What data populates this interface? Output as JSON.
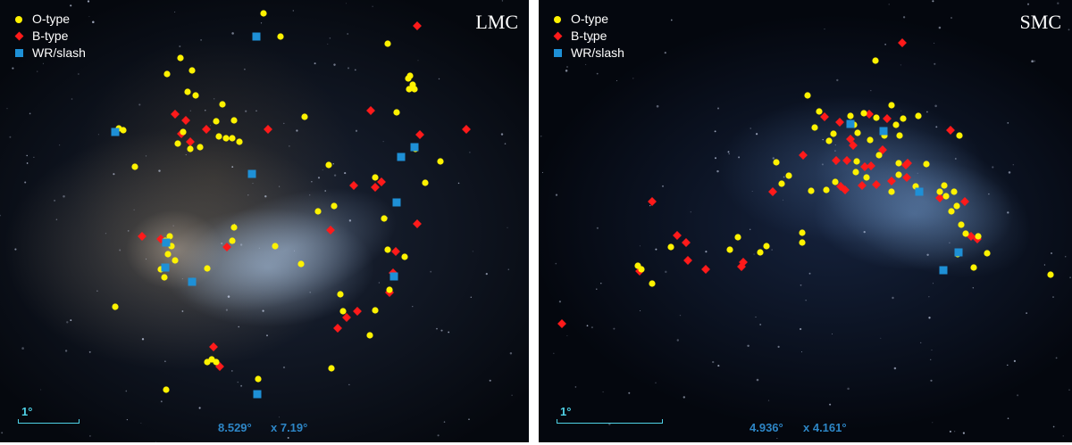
{
  "marker_colors": {
    "o_type": "#fff200",
    "b_type": "#ff1a1a",
    "wr": "#1e90d6"
  },
  "panels": [
    {
      "id": "lmc",
      "galaxy": "LMC",
      "legend": [
        "O-type",
        "B-type",
        "WR/slash"
      ],
      "scale_label": "1°",
      "dims_a": "8.529°",
      "dims_b": "x 7.19°",
      "o_type": [
        [
          295,
          15
        ],
        [
          314,
          41
        ],
        [
          434,
          49
        ],
        [
          202,
          65
        ],
        [
          215,
          79
        ],
        [
          187,
          83
        ],
        [
          210,
          103
        ],
        [
          219,
          107
        ],
        [
          249,
          117
        ],
        [
          262,
          135
        ],
        [
          242,
          136
        ],
        [
          260,
          155
        ],
        [
          268,
          159
        ],
        [
          253,
          155
        ],
        [
          224,
          165
        ],
        [
          213,
          167
        ],
        [
          199,
          161
        ],
        [
          205,
          148
        ],
        [
          133,
          144
        ],
        [
          138,
          146
        ],
        [
          151,
          187
        ],
        [
          245,
          153
        ],
        [
          341,
          131
        ],
        [
          457,
          88
        ],
        [
          462,
          95
        ],
        [
          464,
          100
        ],
        [
          458,
          100
        ],
        [
          459,
          85
        ],
        [
          444,
          126
        ],
        [
          368,
          185
        ],
        [
          476,
          205
        ],
        [
          493,
          181
        ],
        [
          420,
          199
        ],
        [
          465,
          167
        ],
        [
          190,
          265
        ],
        [
          185,
          270
        ],
        [
          192,
          276
        ],
        [
          188,
          285
        ],
        [
          196,
          292
        ],
        [
          180,
          302
        ],
        [
          184,
          311
        ],
        [
          216,
          315
        ],
        [
          232,
          301
        ],
        [
          260,
          270
        ],
        [
          262,
          255
        ],
        [
          308,
          276
        ],
        [
          337,
          296
        ],
        [
          356,
          237
        ],
        [
          374,
          231
        ],
        [
          430,
          245
        ],
        [
          434,
          280
        ],
        [
          453,
          288
        ],
        [
          436,
          325
        ],
        [
          381,
          330
        ],
        [
          384,
          349
        ],
        [
          420,
          348
        ],
        [
          414,
          376
        ],
        [
          371,
          413
        ],
        [
          237,
          403
        ],
        [
          242,
          406
        ],
        [
          232,
          406
        ],
        [
          289,
          425
        ],
        [
          186,
          437
        ],
        [
          129,
          344
        ]
      ],
      "b_type": [
        [
          467,
          29
        ],
        [
          415,
          124
        ],
        [
          196,
          128
        ],
        [
          208,
          135
        ],
        [
          231,
          145
        ],
        [
          300,
          145
        ],
        [
          203,
          150
        ],
        [
          213,
          159
        ],
        [
          396,
          208
        ],
        [
          420,
          210
        ],
        [
          427,
          204
        ],
        [
          470,
          151
        ],
        [
          522,
          145
        ],
        [
          159,
          265
        ],
        [
          180,
          268
        ],
        [
          254,
          277
        ],
        [
          370,
          258
        ],
        [
          467,
          251
        ],
        [
          443,
          282
        ],
        [
          440,
          306
        ],
        [
          436,
          328
        ],
        [
          388,
          356
        ],
        [
          400,
          349
        ],
        [
          378,
          368
        ],
        [
          239,
          389
        ],
        [
          246,
          411
        ]
      ],
      "wr": [
        [
          287,
          41
        ],
        [
          129,
          148
        ],
        [
          464,
          165
        ],
        [
          449,
          176
        ],
        [
          282,
          195
        ],
        [
          444,
          227
        ],
        [
          186,
          272
        ],
        [
          185,
          300
        ],
        [
          215,
          316
        ],
        [
          441,
          310
        ],
        [
          288,
          442
        ]
      ]
    },
    {
      "id": "smc",
      "galaxy": "SMC",
      "legend": [
        "O-type",
        "B-type",
        "WR/slash"
      ],
      "scale_label": "1°",
      "dims_a": "4.936°",
      "dims_b": "x 4.161°",
      "o_type": [
        [
          377,
          68
        ],
        [
          301,
          107
        ],
        [
          314,
          125
        ],
        [
          349,
          130
        ],
        [
          353,
          140
        ],
        [
          364,
          127
        ],
        [
          378,
          132
        ],
        [
          395,
          118
        ],
        [
          408,
          133
        ],
        [
          425,
          130
        ],
        [
          400,
          140
        ],
        [
          387,
          152
        ],
        [
          371,
          157
        ],
        [
          357,
          149
        ],
        [
          330,
          150
        ],
        [
          309,
          143
        ],
        [
          325,
          158
        ],
        [
          404,
          152
        ],
        [
          381,
          174
        ],
        [
          403,
          183
        ],
        [
          403,
          196
        ],
        [
          356,
          181
        ],
        [
          355,
          193
        ],
        [
          332,
          204
        ],
        [
          305,
          214
        ],
        [
          322,
          213
        ],
        [
          280,
          197
        ],
        [
          266,
          182
        ],
        [
          272,
          206
        ],
        [
          295,
          261
        ],
        [
          295,
          272
        ],
        [
          255,
          276
        ],
        [
          248,
          283
        ],
        [
          223,
          266
        ],
        [
          214,
          280
        ],
        [
          148,
          277
        ],
        [
          111,
          298
        ],
        [
          115,
          302
        ],
        [
          127,
          318
        ],
        [
          454,
          208
        ],
        [
          456,
          220
        ],
        [
          465,
          215
        ],
        [
          468,
          231
        ],
        [
          462,
          237
        ],
        [
          449,
          215
        ],
        [
          473,
          252
        ],
        [
          478,
          262
        ],
        [
          492,
          265
        ],
        [
          469,
          285
        ],
        [
          487,
          300
        ],
        [
          502,
          284
        ],
        [
          573,
          308
        ],
        [
          471,
          152
        ],
        [
          434,
          184
        ],
        [
          422,
          209
        ],
        [
          395,
          215
        ],
        [
          367,
          199
        ]
      ],
      "b_type": [
        [
          407,
          48
        ],
        [
          320,
          131
        ],
        [
          337,
          137
        ],
        [
          370,
          128
        ],
        [
          390,
          133
        ],
        [
          349,
          156
        ],
        [
          352,
          163
        ],
        [
          385,
          168
        ],
        [
          345,
          180
        ],
        [
          333,
          180
        ],
        [
          365,
          187
        ],
        [
          372,
          186
        ],
        [
          411,
          185
        ],
        [
          413,
          183
        ],
        [
          395,
          203
        ],
        [
          412,
          199
        ],
        [
          378,
          207
        ],
        [
          362,
          208
        ],
        [
          343,
          213
        ],
        [
          338,
          209
        ],
        [
          296,
          174
        ],
        [
          262,
          215
        ],
        [
          127,
          226
        ],
        [
          155,
          264
        ],
        [
          165,
          272
        ],
        [
          167,
          292
        ],
        [
          187,
          302
        ],
        [
          227,
          299
        ],
        [
          229,
          294
        ],
        [
          461,
          146
        ],
        [
          449,
          222
        ],
        [
          477,
          226
        ],
        [
          491,
          268
        ],
        [
          484,
          265
        ],
        [
          26,
          363
        ],
        [
          113,
          304
        ]
      ],
      "wr": [
        [
          349,
          139
        ],
        [
          386,
          147
        ],
        [
          426,
          215
        ],
        [
          470,
          283
        ],
        [
          453,
          303
        ]
      ]
    }
  ]
}
